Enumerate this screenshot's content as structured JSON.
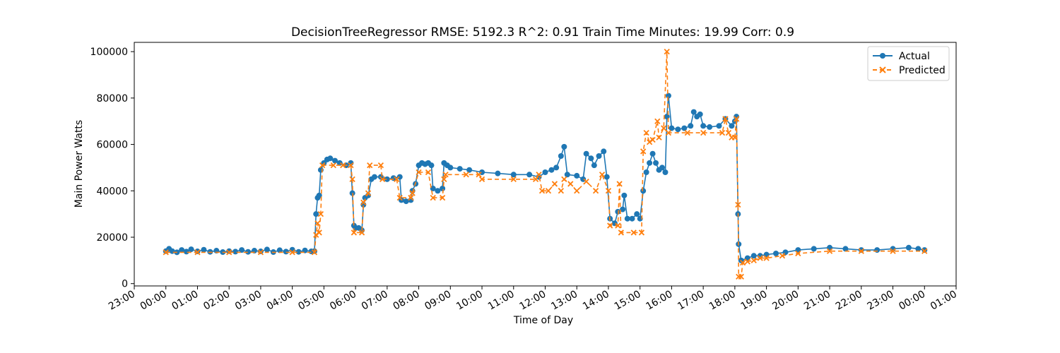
{
  "chart_data": {
    "type": "line",
    "title": "DecisionTreeRegressor RMSE: 5192.3 R^2: 0.91 Train Time Minutes: 19.99 Corr: 0.9",
    "xlabel": "Time of Day",
    "ylabel": "Main Power Watts",
    "x_unit": "hours",
    "xlim": [
      -1.0,
      25.0
    ],
    "ylim": [
      -1000,
      104000
    ],
    "x_ticks": [
      -1,
      0,
      1,
      2,
      3,
      4,
      5,
      6,
      7,
      8,
      9,
      10,
      11,
      12,
      13,
      14,
      15,
      16,
      17,
      18,
      19,
      20,
      21,
      22,
      23,
      24,
      25
    ],
    "x_tick_labels": [
      "23:00",
      "00:00",
      "01:00",
      "02:00",
      "03:00",
      "04:00",
      "05:00",
      "06:00",
      "07:00",
      "08:00",
      "09:00",
      "10:00",
      "11:00",
      "12:00",
      "13:00",
      "14:00",
      "15:00",
      "16:00",
      "17:00",
      "18:00",
      "19:00",
      "20:00",
      "21:00",
      "22:00",
      "23:00",
      "00:00",
      "01:00"
    ],
    "y_ticks": [
      0,
      20000,
      40000,
      60000,
      80000,
      100000
    ],
    "y_tick_labels": [
      "0",
      "20000",
      "40000",
      "60000",
      "80000",
      "100000"
    ],
    "legend_position": "top-right",
    "grid": false,
    "series": [
      {
        "name": "Actual",
        "color": "#1f77b4",
        "marker": "circle",
        "linestyle": "solid",
        "points": [
          [
            0.0,
            14000
          ],
          [
            0.1,
            15000
          ],
          [
            0.2,
            14000
          ],
          [
            0.35,
            13500
          ],
          [
            0.5,
            14500
          ],
          [
            0.65,
            13800
          ],
          [
            0.8,
            14800
          ],
          [
            1.0,
            13900
          ],
          [
            1.2,
            14600
          ],
          [
            1.4,
            13700
          ],
          [
            1.6,
            14200
          ],
          [
            1.8,
            13600
          ],
          [
            2.0,
            14000
          ],
          [
            2.2,
            13800
          ],
          [
            2.4,
            14500
          ],
          [
            2.6,
            13700
          ],
          [
            2.8,
            14200
          ],
          [
            3.0,
            13900
          ],
          [
            3.2,
            14700
          ],
          [
            3.4,
            13600
          ],
          [
            3.6,
            14400
          ],
          [
            3.8,
            13800
          ],
          [
            4.0,
            14600
          ],
          [
            4.2,
            13700
          ],
          [
            4.4,
            14300
          ],
          [
            4.6,
            13900
          ],
          [
            4.7,
            14000
          ],
          [
            4.75,
            30000
          ],
          [
            4.8,
            37000
          ],
          [
            4.85,
            38000
          ],
          [
            4.9,
            49000
          ],
          [
            5.0,
            52000
          ],
          [
            5.1,
            53500
          ],
          [
            5.2,
            54000
          ],
          [
            5.35,
            53000
          ],
          [
            5.5,
            52000
          ],
          [
            5.7,
            51000
          ],
          [
            5.85,
            52000
          ],
          [
            5.9,
            39000
          ],
          [
            5.95,
            25000
          ],
          [
            6.0,
            24000
          ],
          [
            6.1,
            24000
          ],
          [
            6.2,
            23000
          ],
          [
            6.25,
            34000
          ],
          [
            6.3,
            37000
          ],
          [
            6.4,
            38000
          ],
          [
            6.5,
            45000
          ],
          [
            6.6,
            46000
          ],
          [
            6.8,
            46000
          ],
          [
            7.0,
            45000
          ],
          [
            7.2,
            45500
          ],
          [
            7.4,
            46000
          ],
          [
            7.45,
            36000
          ],
          [
            7.6,
            35500
          ],
          [
            7.75,
            36000
          ],
          [
            7.8,
            40000
          ],
          [
            7.9,
            43000
          ],
          [
            8.0,
            51000
          ],
          [
            8.1,
            52000
          ],
          [
            8.2,
            51500
          ],
          [
            8.3,
            52000
          ],
          [
            8.4,
            51000
          ],
          [
            8.45,
            41000
          ],
          [
            8.6,
            40000
          ],
          [
            8.75,
            41000
          ],
          [
            8.8,
            52000
          ],
          [
            8.9,
            51000
          ],
          [
            9.0,
            50000
          ],
          [
            9.3,
            49500
          ],
          [
            9.6,
            49000
          ],
          [
            10.0,
            48000
          ],
          [
            10.5,
            47500
          ],
          [
            11.0,
            47000
          ],
          [
            11.5,
            47000
          ],
          [
            11.8,
            46000
          ],
          [
            12.0,
            48000
          ],
          [
            12.2,
            49000
          ],
          [
            12.35,
            50000
          ],
          [
            12.5,
            55000
          ],
          [
            12.6,
            59000
          ],
          [
            12.7,
            47000
          ],
          [
            13.0,
            46500
          ],
          [
            13.2,
            45000
          ],
          [
            13.3,
            56000
          ],
          [
            13.45,
            54000
          ],
          [
            13.55,
            51000
          ],
          [
            13.7,
            55000
          ],
          [
            13.85,
            57000
          ],
          [
            13.95,
            46000
          ],
          [
            14.05,
            28000
          ],
          [
            14.2,
            26000
          ],
          [
            14.3,
            31000
          ],
          [
            14.45,
            32000
          ],
          [
            14.5,
            38000
          ],
          [
            14.6,
            28000
          ],
          [
            14.75,
            28000
          ],
          [
            14.9,
            30000
          ],
          [
            15.0,
            28000
          ],
          [
            15.1,
            40000
          ],
          [
            15.2,
            48000
          ],
          [
            15.3,
            52000
          ],
          [
            15.4,
            56000
          ],
          [
            15.5,
            52000
          ],
          [
            15.6,
            49000
          ],
          [
            15.7,
            50000
          ],
          [
            15.8,
            48000
          ],
          [
            15.85,
            72000
          ],
          [
            15.9,
            81000
          ],
          [
            16.0,
            67000
          ],
          [
            16.2,
            66500
          ],
          [
            16.4,
            67000
          ],
          [
            16.6,
            68000
          ],
          [
            16.7,
            74000
          ],
          [
            16.8,
            72000
          ],
          [
            16.9,
            73000
          ],
          [
            17.0,
            68000
          ],
          [
            17.2,
            67500
          ],
          [
            17.5,
            68000
          ],
          [
            17.7,
            71000
          ],
          [
            17.9,
            68000
          ],
          [
            18.0,
            70000
          ],
          [
            18.05,
            72000
          ],
          [
            18.1,
            30000
          ],
          [
            18.12,
            17000
          ],
          [
            18.2,
            10000
          ],
          [
            18.4,
            11000
          ],
          [
            18.6,
            12000
          ],
          [
            18.8,
            12000
          ],
          [
            19.0,
            12500
          ],
          [
            19.3,
            13000
          ],
          [
            19.6,
            13500
          ],
          [
            20.0,
            14500
          ],
          [
            20.5,
            15000
          ],
          [
            21.0,
            15500
          ],
          [
            21.5,
            15000
          ],
          [
            22.0,
            14500
          ],
          [
            22.5,
            14500
          ],
          [
            23.0,
            15000
          ],
          [
            23.5,
            15500
          ],
          [
            23.8,
            15000
          ],
          [
            24.0,
            14500
          ]
        ]
      },
      {
        "name": "Predicted",
        "color": "#ff7f0e",
        "marker": "x",
        "linestyle": "dashed",
        "points": [
          [
            0.0,
            13500
          ],
          [
            1.0,
            13500
          ],
          [
            2.0,
            13500
          ],
          [
            3.0,
            13500
          ],
          [
            4.0,
            13500
          ],
          [
            4.7,
            13500
          ],
          [
            4.75,
            21000
          ],
          [
            4.8,
            26000
          ],
          [
            4.85,
            22000
          ],
          [
            4.9,
            30000
          ],
          [
            4.95,
            51000
          ],
          [
            5.3,
            51000
          ],
          [
            5.6,
            51000
          ],
          [
            5.85,
            51000
          ],
          [
            5.9,
            45000
          ],
          [
            5.95,
            22000
          ],
          [
            6.2,
            22000
          ],
          [
            6.25,
            35000
          ],
          [
            6.4,
            39000
          ],
          [
            6.45,
            51000
          ],
          [
            6.8,
            51000
          ],
          [
            6.85,
            45000
          ],
          [
            7.3,
            45000
          ],
          [
            7.4,
            37000
          ],
          [
            7.75,
            37000
          ],
          [
            7.8,
            39000
          ],
          [
            8.0,
            48000
          ],
          [
            8.3,
            48000
          ],
          [
            8.45,
            37000
          ],
          [
            8.75,
            37000
          ],
          [
            8.8,
            45000
          ],
          [
            8.85,
            47000
          ],
          [
            9.5,
            47000
          ],
          [
            9.9,
            47000
          ],
          [
            10.0,
            45000
          ],
          [
            11.0,
            45000
          ],
          [
            11.7,
            45000
          ],
          [
            11.8,
            47000
          ],
          [
            11.9,
            40000
          ],
          [
            12.1,
            40000
          ],
          [
            12.3,
            43000
          ],
          [
            12.5,
            40000
          ],
          [
            12.6,
            45000
          ],
          [
            12.8,
            43000
          ],
          [
            13.0,
            40000
          ],
          [
            13.3,
            44000
          ],
          [
            13.6,
            40000
          ],
          [
            13.8,
            47000
          ],
          [
            14.0,
            40000
          ],
          [
            14.05,
            25000
          ],
          [
            14.3,
            25000
          ],
          [
            14.35,
            43000
          ],
          [
            14.4,
            22000
          ],
          [
            14.8,
            22000
          ],
          [
            15.05,
            22000
          ],
          [
            15.1,
            57000
          ],
          [
            15.2,
            65000
          ],
          [
            15.3,
            61000
          ],
          [
            15.4,
            62000
          ],
          [
            15.55,
            70000
          ],
          [
            15.6,
            63000
          ],
          [
            15.75,
            67000
          ],
          [
            15.85,
            100000
          ],
          [
            15.9,
            65000
          ],
          [
            16.5,
            65000
          ],
          [
            17.0,
            65000
          ],
          [
            17.6,
            65000
          ],
          [
            17.7,
            71000
          ],
          [
            17.8,
            65000
          ],
          [
            17.9,
            63000
          ],
          [
            18.0,
            63000
          ],
          [
            18.05,
            71000
          ],
          [
            18.1,
            34000
          ],
          [
            18.12,
            3000
          ],
          [
            18.2,
            3000
          ],
          [
            18.25,
            9000
          ],
          [
            18.4,
            9500
          ],
          [
            18.6,
            10000
          ],
          [
            18.8,
            11000
          ],
          [
            19.0,
            11000
          ],
          [
            19.5,
            12000
          ],
          [
            20.0,
            13000
          ],
          [
            21.0,
            14000
          ],
          [
            22.0,
            14000
          ],
          [
            23.0,
            14000
          ],
          [
            24.0,
            14000
          ]
        ]
      }
    ]
  }
}
